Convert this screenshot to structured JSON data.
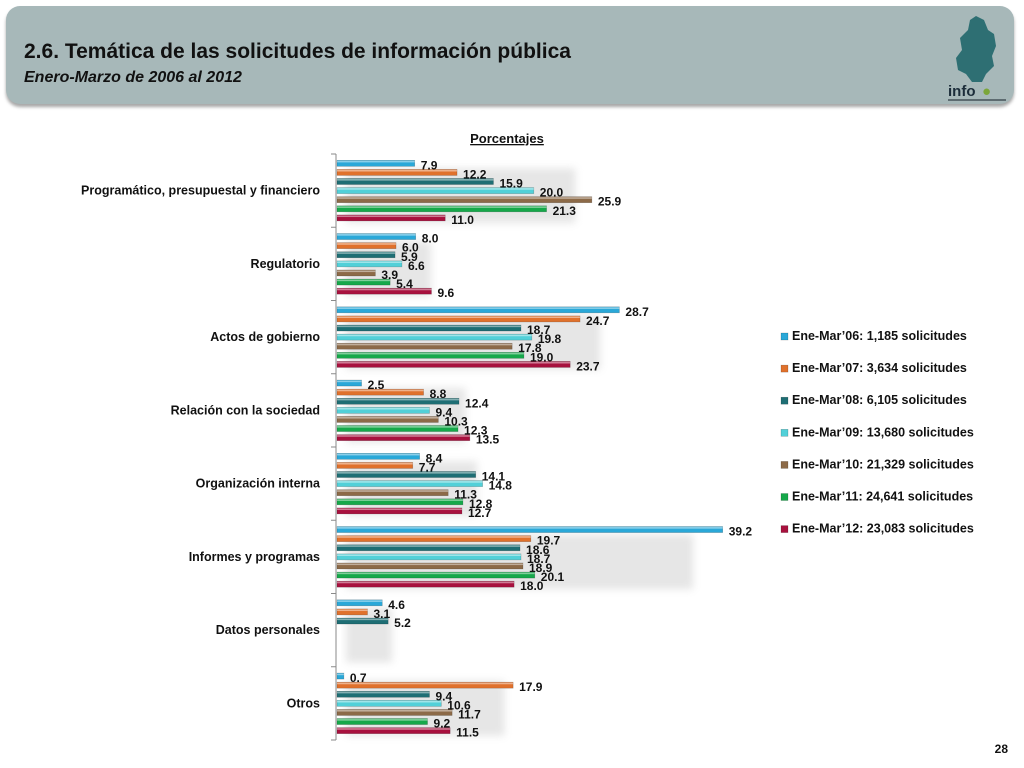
{
  "header": {
    "title": "2.6. Temática de las solicitudes de información pública",
    "subtitle": "Enero-Marzo de 2006 al 2012",
    "logo_text": "info"
  },
  "page_number": "28",
  "chart_data": {
    "type": "bar",
    "orientation": "horizontal",
    "title": "Porcentajes",
    "categories": [
      "Programático, presupuestal y financiero",
      "Regulatorio",
      "Actos de gobierno",
      "Relación con la sociedad",
      "Organización interna",
      "Informes y programas",
      "Datos personales",
      "Otros"
    ],
    "xlim": [
      0,
      40
    ],
    "grid": false,
    "legend_position": "right",
    "series": [
      {
        "name": "Ene-Mar’06: 1,185 solicitudes",
        "color": "#2aa8d8",
        "values": [
          7.9,
          8.0,
          28.7,
          2.5,
          8.4,
          39.2,
          4.6,
          0.7
        ]
      },
      {
        "name": "Ene-Mar’07: 3,634 solicitudes",
        "color": "#e0712c",
        "values": [
          12.2,
          6.0,
          24.7,
          8.8,
          7.7,
          19.7,
          3.1,
          17.9
        ]
      },
      {
        "name": "Ene-Mar’08: 6,105 solicitudes",
        "color": "#1e6e74",
        "values": [
          15.9,
          5.9,
          18.7,
          12.4,
          14.1,
          18.6,
          5.2,
          9.4
        ]
      },
      {
        "name": "Ene-Mar’09: 13,680 solicitudes",
        "color": "#52d0d8",
        "values": [
          20.0,
          6.6,
          19.8,
          9.4,
          14.8,
          18.7,
          null,
          10.6
        ]
      },
      {
        "name": "Ene-Mar’10: 21,329 solicitudes",
        "color": "#8c6a48",
        "values": [
          25.9,
          3.9,
          17.8,
          10.3,
          11.3,
          18.9,
          null,
          11.7
        ]
      },
      {
        "name": "Ene-Mar’11: 24,641 solicitudes",
        "color": "#16a84a",
        "values": [
          21.3,
          5.4,
          19.0,
          12.3,
          12.8,
          20.1,
          null,
          9.2
        ]
      },
      {
        "name": "Ene-Mar’12: 23,083 solicitudes",
        "color": "#a8113e",
        "values": [
          11.0,
          9.6,
          23.7,
          13.5,
          12.7,
          18.0,
          null,
          11.5
        ]
      }
    ]
  }
}
